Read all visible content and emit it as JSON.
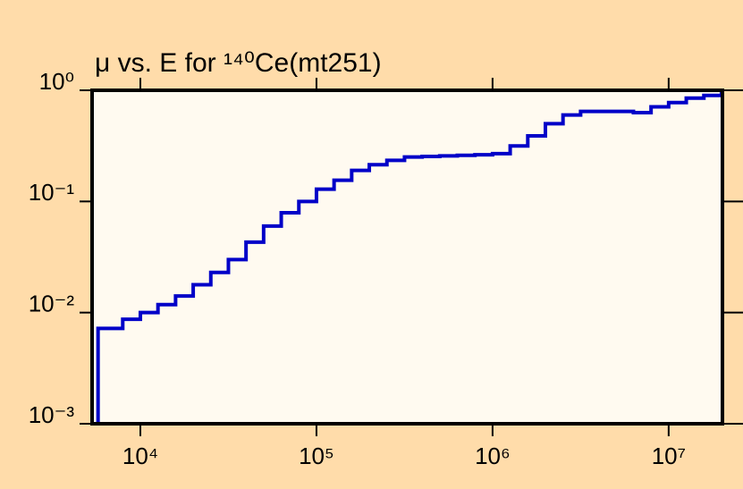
{
  "chart_data": {
    "type": "step",
    "title": "μ vs. E for ¹⁴⁰Ce(mt251)",
    "xscale": "log",
    "yscale": "log",
    "xlim": [
      5320,
      20200000
    ],
    "ylim": [
      0.001,
      1
    ],
    "xticks": [
      {
        "value": 10000,
        "label": "10⁴"
      },
      {
        "value": 100000,
        "label": "10⁵"
      },
      {
        "value": 1000000,
        "label": "10⁶"
      },
      {
        "value": 10000000,
        "label": "10⁷"
      }
    ],
    "yticks": [
      {
        "value": 0.001,
        "label": "10⁻³"
      },
      {
        "value": 0.01,
        "label": "10⁻²"
      },
      {
        "value": 0.1,
        "label": "10⁻¹"
      },
      {
        "value": 1,
        "label": "10⁰"
      }
    ],
    "series": [
      {
        "color": "#0000c8",
        "x": [
          5750,
          7943,
          10000,
          12589,
          15849,
          19953,
          25119,
          31623,
          39811,
          50119,
          63096,
          79433,
          100000,
          125893,
          158489,
          199526,
          251189,
          316228,
          398107,
          501187,
          630957,
          794328,
          1000000,
          1258925,
          1584893,
          1995262,
          2511886,
          3162278,
          3981072,
          5011872,
          6309573,
          7943282,
          10000000,
          12589254,
          15848932,
          19952623
        ],
        "values": [
          0.0072,
          0.0087,
          0.01,
          0.0118,
          0.0141,
          0.0178,
          0.023,
          0.03,
          0.043,
          0.06,
          0.079,
          0.1,
          0.129,
          0.155,
          0.19,
          0.214,
          0.234,
          0.251,
          0.254,
          0.257,
          0.26,
          0.263,
          0.269,
          0.316,
          0.389,
          0.5,
          0.6,
          0.646,
          0.646,
          0.646,
          0.63,
          0.71,
          0.776,
          0.85,
          0.9,
          0.93
        ]
      }
    ]
  }
}
